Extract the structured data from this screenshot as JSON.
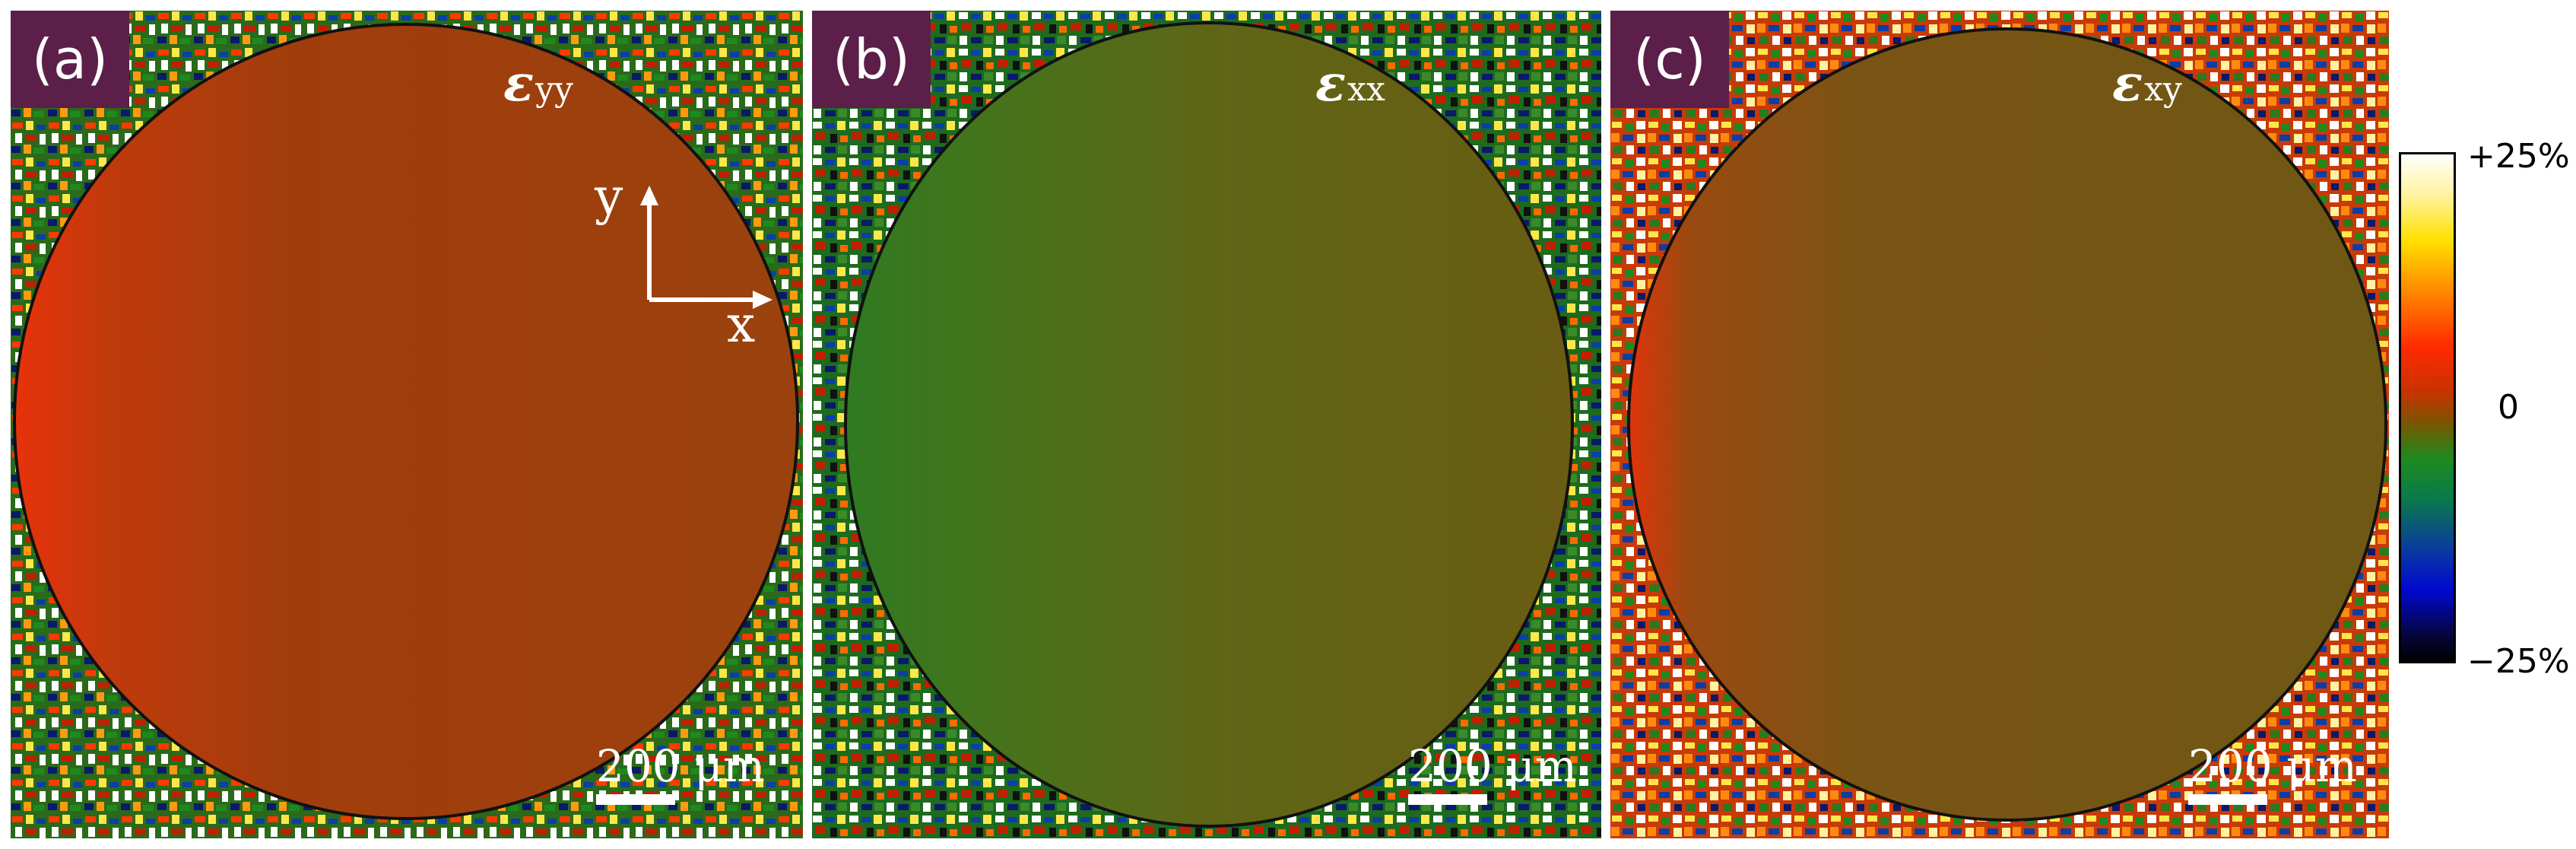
{
  "panels": [
    {
      "label": "(a)",
      "strain_symbol": "ε",
      "strain_subscript": "yy",
      "scale_bar_text": "200 μm"
    },
    {
      "label": "(b)",
      "strain_symbol": "ε",
      "strain_subscript": "xx",
      "scale_bar_text": "200 μm"
    },
    {
      "label": "(c)",
      "strain_symbol": "ε",
      "strain_subscript": "xy",
      "scale_bar_text": "200 μm"
    }
  ],
  "axes": {
    "x_label": "x",
    "y_label": "y"
  },
  "colorbar": {
    "max_label": "+25%",
    "mid_label": "0",
    "min_label": "−25%",
    "colors": [
      "#ffffff",
      "#ffe000",
      "#ff2a00",
      "#7a5500",
      "#1e8a1e",
      "#0008d0",
      "#000000"
    ]
  },
  "colors": {
    "label_background": "#5b1f4a",
    "panel_a_fill": "#a63a0a",
    "panel_b_fill": "#5a6616",
    "panel_c_fill": "#7a5014"
  }
}
